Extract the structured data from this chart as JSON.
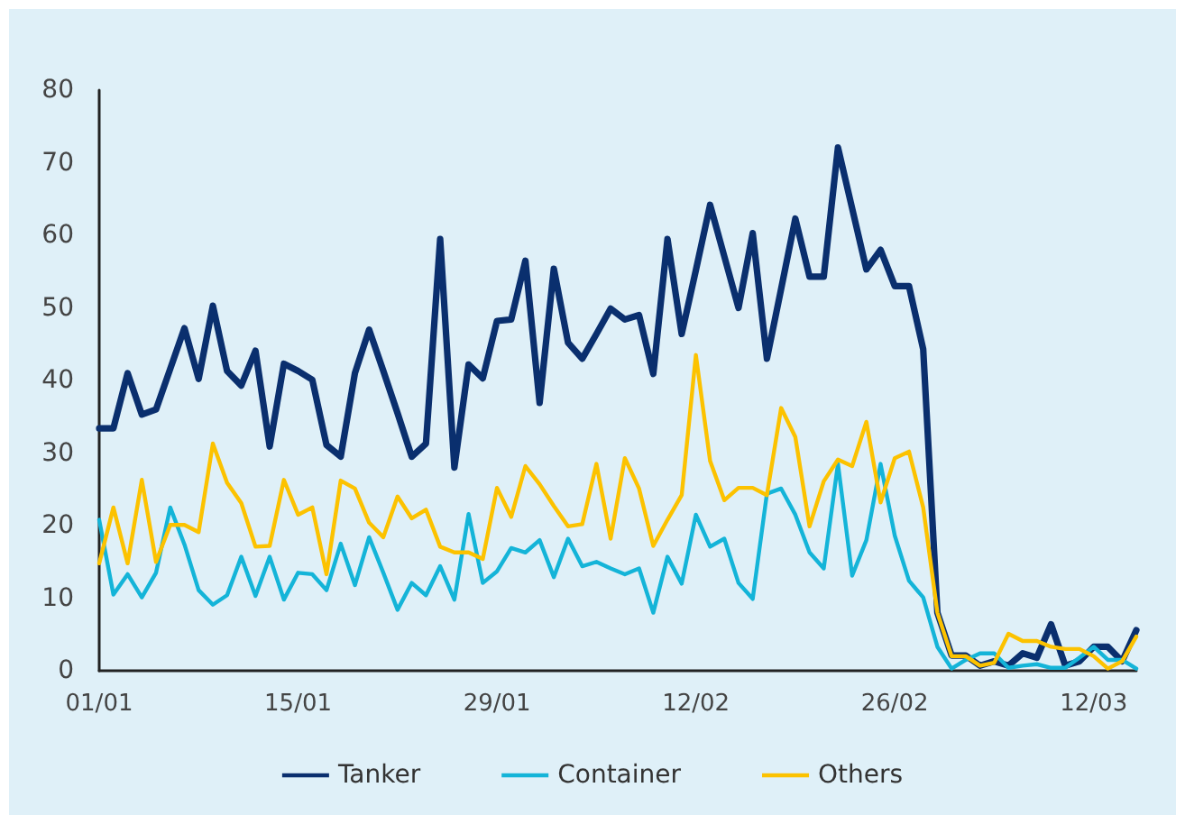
{
  "chart_data": {
    "type": "line",
    "categories": [
      "01/01",
      null,
      null,
      null,
      null,
      null,
      null,
      null,
      null,
      null,
      null,
      null,
      null,
      null,
      "15/01",
      null,
      null,
      null,
      null,
      null,
      null,
      null,
      null,
      null,
      null,
      null,
      null,
      null,
      "29/01",
      null,
      null,
      null,
      null,
      null,
      null,
      null,
      null,
      null,
      null,
      null,
      null,
      null,
      "12/02",
      null,
      null,
      null,
      null,
      null,
      null,
      null,
      null,
      null,
      null,
      null,
      null,
      null,
      "26/02",
      null,
      null,
      null,
      null,
      null,
      null,
      null,
      null,
      null,
      null,
      null,
      null,
      null,
      "12/03",
      null,
      null,
      null
    ],
    "series": [
      {
        "name": "Tanker",
        "color": "#0a2f6e",
        "values": [
          33.4,
          33.4,
          41,
          35.3,
          36,
          41.6,
          47.2,
          40.2,
          50.3,
          41.3,
          39.3,
          44.1,
          30.9,
          42.3,
          41.3,
          40.1,
          31.1,
          29.5,
          41,
          47,
          41.3,
          35.5,
          29.5,
          31.3,
          59.5,
          28,
          42.2,
          40.3,
          48.2,
          48.4,
          56.5,
          36.9,
          55.4,
          45.2,
          43,
          46.4,
          49.9,
          48.4,
          49,
          40.9,
          59.5,
          46.4,
          55.2,
          64.2,
          57.1,
          50,
          60.3,
          43,
          52.6,
          62.3,
          54.3,
          54.3,
          72.1,
          63.7,
          55.3,
          58,
          53,
          53,
          44.3,
          8,
          2.1,
          2.1,
          0.7,
          1.3,
          0.7,
          2.4,
          1.8,
          6.4,
          0.7,
          1.3,
          3.3,
          3.3,
          1.3,
          5.6
        ]
      },
      {
        "name": "Container",
        "color": "#14b4d8",
        "values": [
          20.8,
          10.5,
          13.3,
          10.1,
          13.5,
          22.5,
          17.4,
          11.1,
          9.1,
          10.4,
          15.7,
          10.3,
          15.7,
          9.8,
          13.5,
          13.3,
          11.1,
          17.5,
          11.8,
          18.4,
          13.5,
          8.4,
          12.1,
          10.4,
          14.4,
          9.8,
          21.6,
          12.1,
          13.7,
          16.9,
          16.3,
          18,
          12.9,
          18.2,
          14.4,
          15,
          14.1,
          13.3,
          14.1,
          8,
          15.7,
          12,
          21.5,
          17.1,
          18.2,
          12.1,
          9.9,
          24.4,
          25.1,
          21.5,
          16.3,
          14.1,
          28.5,
          13.1,
          18,
          28.5,
          18.6,
          12.4,
          10.1,
          3.3,
          0.3,
          1.5,
          2.4,
          2.4,
          0.4,
          0.7,
          0.9,
          0.4,
          0.4,
          1.8,
          3.3,
          1.5,
          1.5,
          0.3
        ]
      },
      {
        "name": "Others",
        "color": "#fcc200",
        "values": [
          14.8,
          22.5,
          14.8,
          26.3,
          15,
          20.1,
          20.1,
          19.1,
          31.3,
          25.9,
          23.1,
          17.1,
          17.2,
          26.3,
          21.5,
          22.5,
          13.3,
          26.2,
          25.1,
          20.4,
          18.4,
          24,
          21,
          22.2,
          17.1,
          16.3,
          16.3,
          15.4,
          25.2,
          21.2,
          28.2,
          25.7,
          22.7,
          19.9,
          20.2,
          28.5,
          18.2,
          29.3,
          25.1,
          17.2,
          20.8,
          24.2,
          43.5,
          28.9,
          23.5,
          25.2,
          25.2,
          24.2,
          36.2,
          32.2,
          19.9,
          26.1,
          29.1,
          28.2,
          34.3,
          23.2,
          29.3,
          30.2,
          22.5,
          8,
          2,
          2,
          0.7,
          1.1,
          5.1,
          4.1,
          4.1,
          3.3,
          3,
          3,
          2,
          0.3,
          1.3,
          4.7
        ]
      }
    ],
    "ylim": [
      0,
      80
    ],
    "yticks": [
      0,
      10,
      20,
      30,
      40,
      50,
      60,
      70,
      80
    ],
    "grid": false,
    "legend": "bottom",
    "marker": "none",
    "line_style": "solid"
  }
}
